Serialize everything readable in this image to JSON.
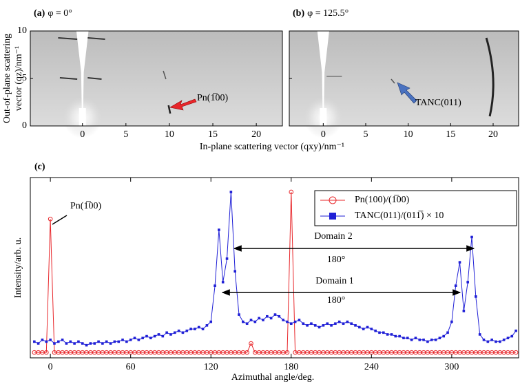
{
  "chart_data": [
    {
      "type": "image",
      "panel": "(a)",
      "title": "φ =  0°",
      "ylabel": [
        "Out-of-plane scattering",
        "vector (qz)/nm⁻¹"
      ],
      "xlabel": "In-plane scattering vector (qxy)/nm⁻¹",
      "xlim": [
        -6,
        23
      ],
      "ylim": [
        0,
        10
      ],
      "xticks": [
        0,
        5,
        10,
        15,
        20
      ],
      "yticks": [
        0,
        5,
        10
      ],
      "show_ytick_labels": true,
      "annotation": {
        "text": "Pn(1̅00)",
        "color": "#e8262a"
      }
    },
    {
      "type": "image",
      "panel": "(b)",
      "title": "φ =  125.5°",
      "xlim": [
        -4,
        23
      ],
      "ylim": [
        0,
        10
      ],
      "xticks": [
        0,
        5,
        10,
        15,
        20
      ],
      "yticks": [
        0,
        5,
        10
      ],
      "show_ytick_labels": false,
      "annotation": {
        "text": "TANC(011)",
        "color": "#4a72c0"
      }
    },
    {
      "type": "line",
      "panel": "(c)",
      "xlabel": "Azimuthal angle/deg.",
      "ylabel": "Intensity/arb. u.",
      "xlim": [
        -15,
        350
      ],
      "ylim": [
        0,
        100
      ],
      "xticks": [
        0,
        60,
        120,
        180,
        240,
        300
      ],
      "legend": "upper right",
      "x": [
        -12,
        -9,
        -6,
        -3,
        0,
        3,
        6,
        9,
        12,
        15,
        18,
        21,
        24,
        27,
        30,
        33,
        36,
        39,
        42,
        45,
        48,
        51,
        54,
        57,
        60,
        63,
        66,
        69,
        72,
        75,
        78,
        81,
        84,
        87,
        90,
        93,
        96,
        99,
        102,
        105,
        108,
        111,
        114,
        117,
        120,
        123,
        126,
        129,
        132,
        135,
        138,
        141,
        144,
        147,
        150,
        153,
        156,
        159,
        162,
        165,
        168,
        171,
        174,
        177,
        180,
        183,
        186,
        189,
        192,
        195,
        198,
        201,
        204,
        207,
        210,
        213,
        216,
        219,
        222,
        225,
        228,
        231,
        234,
        237,
        240,
        243,
        246,
        249,
        252,
        255,
        258,
        261,
        264,
        267,
        270,
        273,
        276,
        279,
        282,
        285,
        288,
        291,
        294,
        297,
        300,
        303,
        306,
        309,
        312,
        315,
        318,
        321,
        324,
        327,
        330,
        333,
        336,
        339,
        342,
        345,
        348
      ],
      "series": [
        {
          "name": "Pn(100)/(1̅00)",
          "color": "#e8262a",
          "marker": "circle-open",
          "values": [
            3,
            3,
            3,
            3,
            77,
            3,
            3,
            3,
            3,
            3,
            3,
            3,
            3,
            3,
            3,
            3,
            3,
            3,
            3,
            3,
            3,
            3,
            3,
            3,
            3,
            3,
            3,
            3,
            3,
            3,
            3,
            3,
            3,
            3,
            3,
            3,
            3,
            3,
            3,
            3,
            3,
            3,
            3,
            3,
            3,
            3,
            3,
            3,
            3,
            3,
            3,
            3,
            3,
            3,
            8,
            3,
            3,
            3,
            3,
            3,
            3,
            3,
            3,
            3,
            92,
            3,
            3,
            3,
            3,
            3,
            3,
            3,
            3,
            3,
            3,
            3,
            3,
            3,
            3,
            3,
            3,
            3,
            3,
            3,
            3,
            3,
            3,
            3,
            3,
            3,
            3,
            3,
            3,
            3,
            3,
            3,
            3,
            3,
            3,
            3,
            3,
            3,
            3,
            3,
            3,
            3,
            3,
            3,
            3,
            3,
            3,
            3,
            3,
            3,
            3,
            3,
            3,
            3,
            3,
            3,
            3
          ]
        },
        {
          "name": "TANC(011)/(011̅) × 10",
          "color": "#1f1fd6",
          "marker": "square",
          "values": [
            9,
            8,
            10,
            9,
            10,
            8,
            9,
            10,
            8,
            9,
            8,
            9,
            8,
            7,
            8,
            8,
            9,
            8,
            9,
            8,
            9,
            9,
            10,
            9,
            10,
            11,
            10,
            11,
            12,
            11,
            12,
            13,
            12,
            14,
            13,
            14,
            15,
            14,
            15,
            16,
            16,
            17,
            16,
            18,
            20,
            40,
            71,
            42,
            55,
            92,
            48,
            24,
            20,
            19,
            21,
            20,
            22,
            21,
            23,
            22,
            24,
            23,
            21,
            20,
            19,
            20,
            21,
            19,
            18,
            19,
            18,
            17,
            18,
            19,
            18,
            19,
            20,
            19,
            20,
            19,
            18,
            17,
            16,
            17,
            16,
            15,
            14,
            14,
            13,
            13,
            12,
            12,
            11,
            11,
            10,
            11,
            10,
            10,
            9,
            10,
            10,
            11,
            12,
            14,
            20,
            40,
            53,
            26,
            42,
            67,
            34,
            13,
            10,
            9,
            10,
            9,
            9,
            10,
            11,
            12,
            15
          ]
        }
      ],
      "annotations": [
        {
          "text": "Pn(1̅00)"
        },
        {
          "text": "Domain 2"
        },
        {
          "text": "180°"
        },
        {
          "text": "Domain 1"
        },
        {
          "text": "180°"
        }
      ]
    }
  ]
}
